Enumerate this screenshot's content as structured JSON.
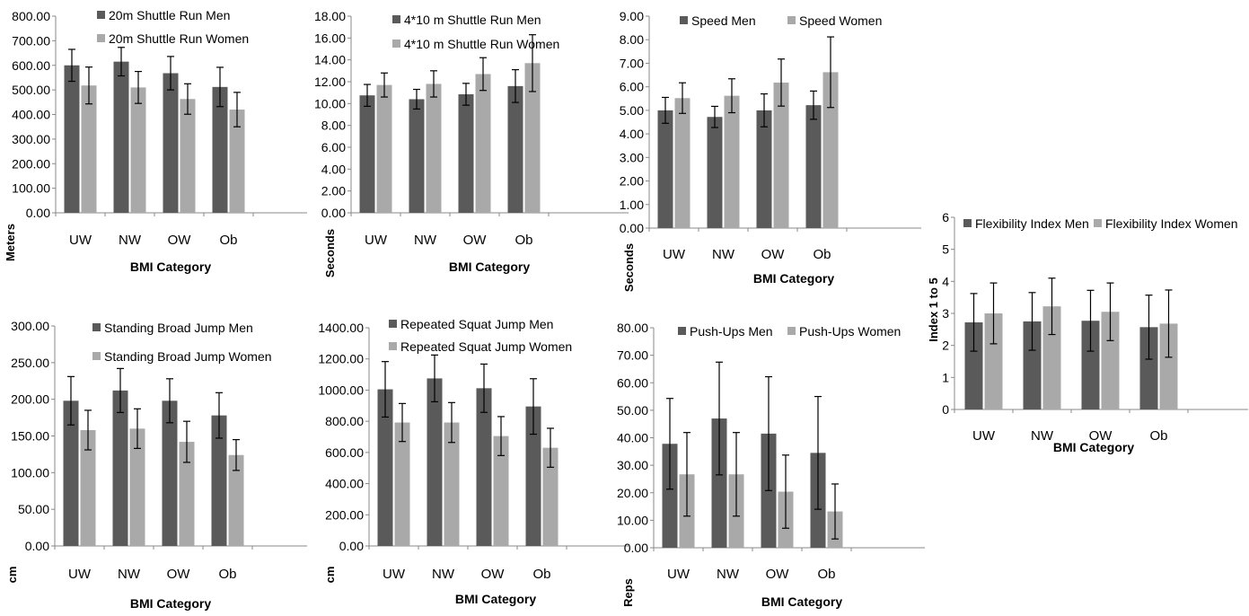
{
  "colors": {
    "men": "#5a5a5a",
    "women": "#a9a9a9",
    "axis": "#888888",
    "error": "#000000"
  },
  "chart_data": [
    {
      "id": "shuttle20",
      "type": "bar",
      "categories": [
        "UW",
        "NW",
        "OW",
        "Ob"
      ],
      "series": [
        {
          "name": "20m Shuttle Run Men",
          "values": [
            600,
            615,
            568,
            512
          ],
          "errors": [
            65,
            58,
            68,
            80
          ]
        },
        {
          "name": "20m Shuttle Run Women",
          "values": [
            518,
            510,
            463,
            420
          ],
          "errors": [
            75,
            65,
            62,
            70
          ]
        }
      ],
      "yticks": [
        "0.00",
        "100.00",
        "200.00",
        "300.00",
        "400.00",
        "500.00",
        "600.00",
        "700.00",
        "800.00"
      ],
      "ylim": [
        0,
        800
      ],
      "ylabel": "Meters",
      "xlabel": "BMI Category",
      "legend": "top-left"
    },
    {
      "id": "shuttle4x10",
      "type": "bar",
      "categories": [
        "UW",
        "NW",
        "OW",
        "Ob"
      ],
      "series": [
        {
          "name": "4*10 m Shuttle Run Men",
          "values": [
            10.75,
            10.4,
            10.85,
            11.6
          ],
          "errors": [
            1.0,
            0.9,
            1.0,
            1.5
          ]
        },
        {
          "name": "4*10 m Shuttle Run Women",
          "values": [
            11.7,
            11.8,
            12.7,
            13.7
          ],
          "errors": [
            1.1,
            1.2,
            1.5,
            2.6
          ]
        }
      ],
      "yticks": [
        "0.00",
        "2.00",
        "4.00",
        "6.00",
        "8.00",
        "10.00",
        "12.00",
        "14.00",
        "16.00",
        "18.00"
      ],
      "ylim": [
        0,
        18
      ],
      "ylabel": "Seconds",
      "xlabel": "BMI Category",
      "legend": "top-left"
    },
    {
      "id": "speed",
      "type": "bar",
      "categories": [
        "UW",
        "NW",
        "OW",
        "Ob"
      ],
      "series": [
        {
          "name": "Speed Men",
          "values": [
            5.0,
            4.72,
            5.0,
            5.22
          ],
          "errors": [
            0.55,
            0.45,
            0.7,
            0.6
          ]
        },
        {
          "name": "Speed Women",
          "values": [
            5.52,
            5.62,
            6.18,
            6.62
          ],
          "errors": [
            0.65,
            0.72,
            1.0,
            1.5
          ]
        }
      ],
      "yticks": [
        "0.00",
        "1.00",
        "2.00",
        "3.00",
        "4.00",
        "5.00",
        "6.00",
        "7.00",
        "8.00",
        "9.00"
      ],
      "ylim": [
        0,
        9
      ],
      "ylabel": "Seconds",
      "xlabel": "BMI Category",
      "legend": "top-left"
    },
    {
      "id": "flexibility",
      "type": "bar",
      "categories": [
        "UW",
        "NW",
        "OW",
        "Ob"
      ],
      "series": [
        {
          "name": "Flexibility Index Men",
          "values": [
            2.72,
            2.75,
            2.77,
            2.57
          ],
          "errors": [
            0.9,
            0.9,
            0.95,
            1.0
          ]
        },
        {
          "name": "Flexibility Index Women",
          "values": [
            3.0,
            3.22,
            3.05,
            2.68
          ],
          "errors": [
            0.95,
            0.88,
            0.9,
            1.05
          ]
        }
      ],
      "yticks": [
        "0",
        "1",
        "2",
        "3",
        "4",
        "5",
        "6"
      ],
      "ylim": [
        0,
        6
      ],
      "ylabel": "Index 1 to 5",
      "xlabel": "BMI Category",
      "legend": "top"
    },
    {
      "id": "broadjump",
      "type": "bar",
      "categories": [
        "UW",
        "NW",
        "OW",
        "Ob"
      ],
      "series": [
        {
          "name": "Standing Broad Jump Men",
          "values": [
            198,
            212,
            198,
            178
          ],
          "errors": [
            33,
            30,
            30,
            31
          ]
        },
        {
          "name": "Standing Broad Jump Women",
          "values": [
            158,
            160,
            142,
            124
          ],
          "errors": [
            27,
            27,
            28,
            21
          ]
        }
      ],
      "yticks": [
        "0.00",
        "50.00",
        "100.00",
        "150.00",
        "200.00",
        "250.00",
        "300.00"
      ],
      "ylim": [
        0,
        300
      ],
      "ylabel": "cm",
      "xlabel": "BMI Category",
      "legend": "top-left"
    },
    {
      "id": "squatjump",
      "type": "bar",
      "categories": [
        "UW",
        "NW",
        "OW",
        "Ob"
      ],
      "series": [
        {
          "name": "Repeated Squat Jump Men",
          "values": [
            1005,
            1075,
            1012,
            895
          ],
          "errors": [
            178,
            150,
            155,
            178
          ]
        },
        {
          "name": "Repeated Squat Jump Women",
          "values": [
            792,
            792,
            705,
            630
          ],
          "errors": [
            122,
            128,
            125,
            125
          ]
        }
      ],
      "yticks": [
        "0.00",
        "200.00",
        "400.00",
        "600.00",
        "800.00",
        "1000.00",
        "1200.00",
        "1400.00"
      ],
      "ylim": [
        0,
        1400
      ],
      "ylabel": "cm",
      "xlabel": "BMI Category",
      "legend": "top-left"
    },
    {
      "id": "pushups",
      "type": "bar",
      "categories": [
        "UW",
        "NW",
        "OW",
        "Ob"
      ],
      "series": [
        {
          "name": "Push-Ups Men",
          "values": [
            37.8,
            47,
            41.5,
            34.5
          ],
          "errors": [
            16.5,
            20.5,
            20.7,
            20.5
          ]
        },
        {
          "name": "Push-Ups Women",
          "values": [
            26.7,
            26.7,
            20.4,
            13.2
          ],
          "errors": [
            15.2,
            15.2,
            13.3,
            10
          ]
        }
      ],
      "yticks": [
        "0.00",
        "10.00",
        "20.00",
        "30.00",
        "40.00",
        "50.00",
        "60.00",
        "70.00",
        "80.00"
      ],
      "ylim": [
        0,
        80
      ],
      "ylabel": "Reps",
      "xlabel": "BMI Category",
      "legend": "top"
    }
  ]
}
